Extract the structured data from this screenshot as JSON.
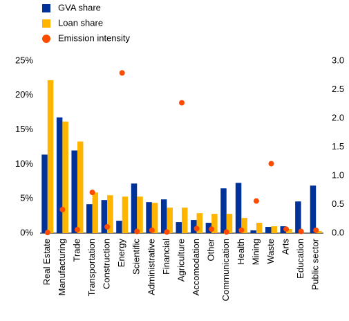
{
  "chart_data": {
    "type": "bar",
    "categories": [
      "Real Estate",
      "Manufacturing",
      "Trade",
      "Transportation",
      "Construction",
      "Energy",
      "Scientific",
      "Administrative",
      "Financial",
      "Agriculture",
      "Accomodation",
      "Other",
      "Communication",
      "Health",
      "Mining",
      "Waste",
      "Arts",
      "Education",
      "Public sector"
    ],
    "series": [
      {
        "name": "GVA share",
        "color": "#003299",
        "type": "bar",
        "values": [
          11.4,
          16.8,
          12.0,
          4.2,
          4.8,
          1.8,
          7.2,
          4.5,
          4.9,
          1.6,
          1.9,
          1.5,
          6.5,
          7.3,
          0.4,
          0.9,
          1.0,
          4.6,
          6.9
        ]
      },
      {
        "name": "Loan share",
        "color": "#ffb400",
        "type": "bar",
        "values": [
          22.2,
          16.2,
          13.3,
          5.9,
          5.5,
          5.3,
          5.3,
          4.4,
          3.7,
          3.7,
          2.9,
          2.8,
          2.8,
          2.2,
          1.5,
          1.0,
          0.6,
          0.0,
          0.3
        ]
      },
      {
        "name": "Emission intensity",
        "color": "#ff4b00",
        "type": "scatter",
        "axis": "y2",
        "values": [
          0.01,
          0.41,
          0.06,
          0.71,
          0.11,
          2.79,
          0.03,
          0.05,
          0.02,
          2.27,
          0.08,
          0.07,
          0.02,
          0.05,
          0.56,
          1.21,
          0.07,
          0.03,
          0.05
        ]
      }
    ],
    "ylim": [
      0,
      25
    ],
    "yticks": [
      {
        "value": 0,
        "label": "0%"
      },
      {
        "value": 5,
        "label": "5%"
      },
      {
        "value": 10,
        "label": "10%"
      },
      {
        "value": 15,
        "label": "15%"
      },
      {
        "value": 20,
        "label": "20%"
      },
      {
        "value": 25,
        "label": "25%"
      }
    ],
    "y2lim": [
      0,
      3
    ],
    "y2ticks": [
      {
        "value": 0,
        "label": "0.0"
      },
      0.5,
      {
        "value": 1,
        "label": "1.0"
      },
      1.5,
      {
        "value": 2,
        "label": "2.0"
      },
      2.5,
      {
        "value": 3,
        "label": "3.0"
      }
    ],
    "legend": "top-left",
    "grid": false
  }
}
